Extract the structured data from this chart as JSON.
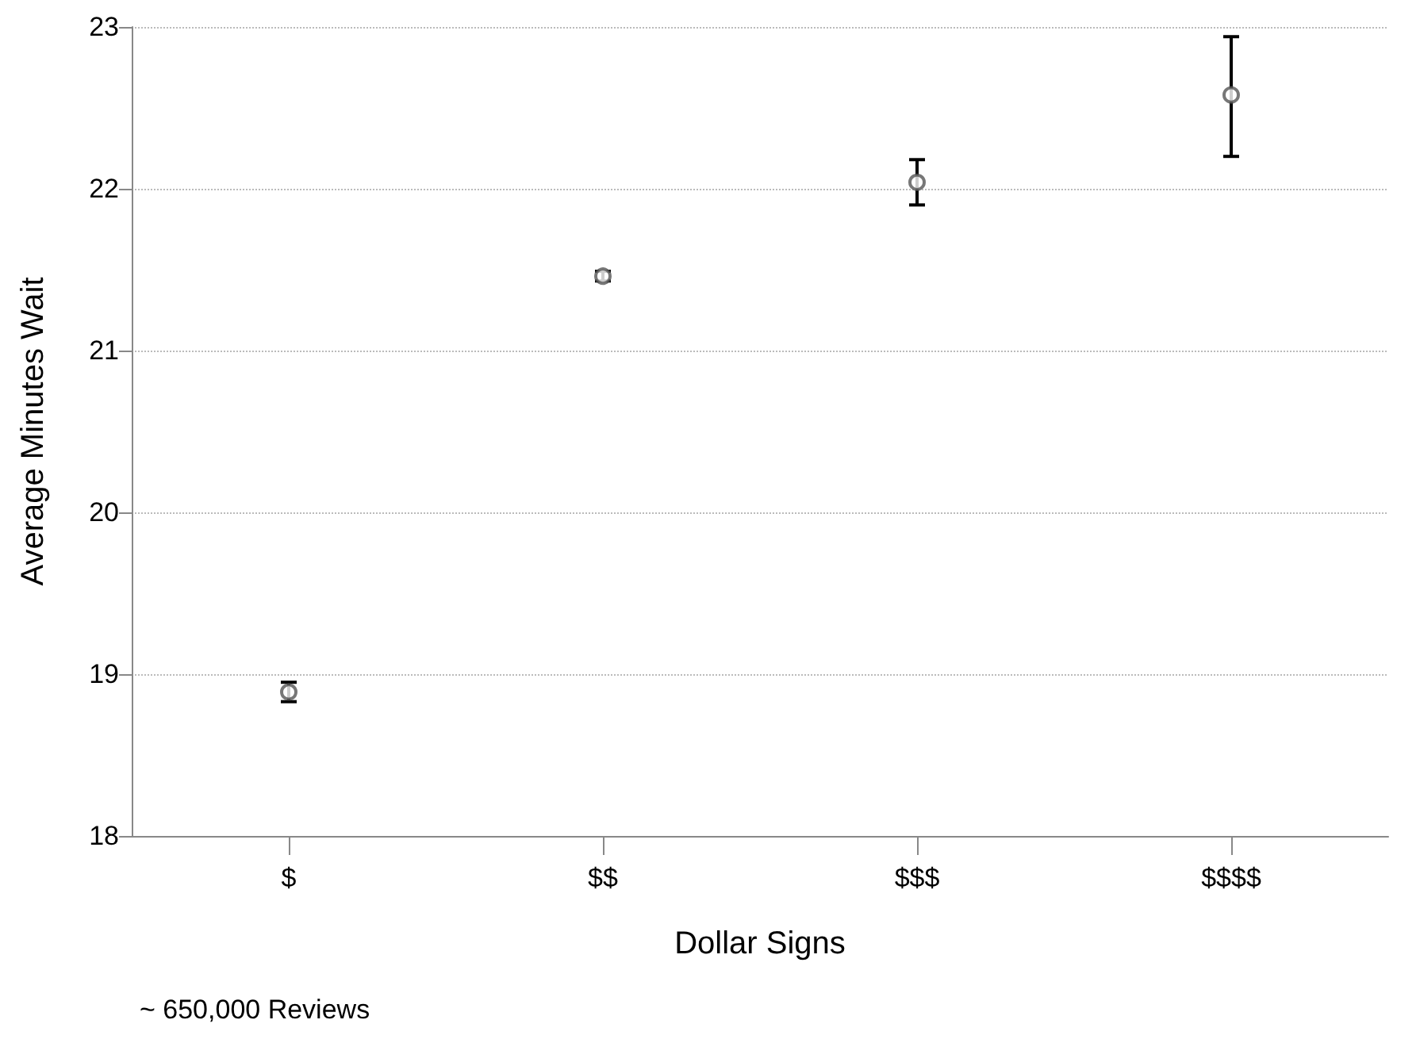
{
  "chart_data": {
    "type": "scatter",
    "xlabel": "Dollar Signs",
    "ylabel": "Average Minutes Wait",
    "categories": [
      "$",
      "$$",
      "$$$",
      "$$$$"
    ],
    "values": [
      18.89,
      21.46,
      22.04,
      22.58
    ],
    "errors": [
      0.06,
      0.03,
      0.14,
      [
        22.2,
        22.94
      ]
    ],
    "color": "#555555",
    "marker": "circle",
    "ylim": [
      18,
      23
    ],
    "yticks": [
      18,
      19,
      20,
      21,
      22,
      23
    ],
    "grid": "y",
    "annotations": [
      "~ 650,000 Reviews"
    ]
  }
}
